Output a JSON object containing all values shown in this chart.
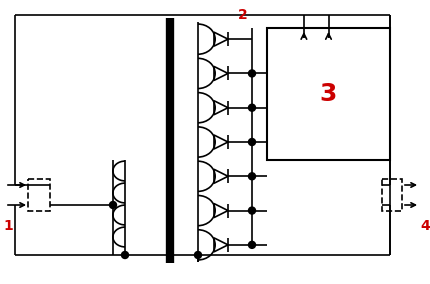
{
  "bg_color": "#ffffff",
  "line_color": "#000000",
  "label_color": "#cc0000",
  "label_1": "1",
  "label_2": "2",
  "label_3": "3",
  "label_4": "4",
  "figw": 4.3,
  "figh": 2.84,
  "dpi": 100
}
